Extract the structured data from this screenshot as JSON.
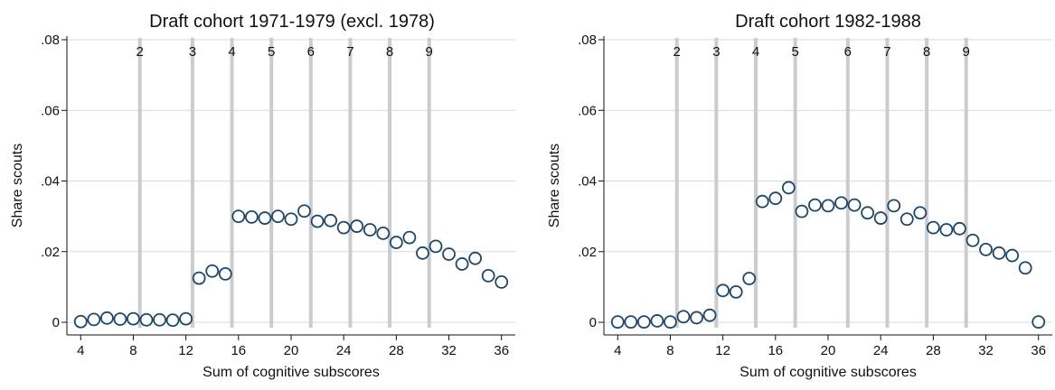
{
  "chart_data": [
    {
      "type": "scatter",
      "title": "Draft cohort 1971-1979 (excl. 1978)",
      "xlabel": "Sum of cognitive subscores",
      "ylabel": "Share scouts",
      "xlim": [
        3.5,
        36.5
      ],
      "ylim": [
        0,
        0.08
      ],
      "xticks": [
        4,
        8,
        12,
        16,
        20,
        24,
        28,
        32,
        36
      ],
      "yticks": [
        0,
        0.02,
        0.04,
        0.06,
        0.08
      ],
      "ytick_labels": [
        "0",
        ".02",
        ".04",
        ".06",
        ".08"
      ],
      "grid": "horizontal",
      "vlines": [
        {
          "x": 8.5,
          "label": "2"
        },
        {
          "x": 12.5,
          "label": "3"
        },
        {
          "x": 15.5,
          "label": "4"
        },
        {
          "x": 18.5,
          "label": "5"
        },
        {
          "x": 21.5,
          "label": "6"
        },
        {
          "x": 24.5,
          "label": "7"
        },
        {
          "x": 27.5,
          "label": "8"
        },
        {
          "x": 30.5,
          "label": "9"
        }
      ],
      "points": [
        [
          4,
          0.0002
        ],
        [
          5,
          0.0008
        ],
        [
          6,
          0.0012
        ],
        [
          7,
          0.0009
        ],
        [
          8,
          0.001
        ],
        [
          9,
          0.0007
        ],
        [
          10,
          0.0007
        ],
        [
          11,
          0.0006
        ],
        [
          12,
          0.001
        ],
        [
          13,
          0.0125
        ],
        [
          14,
          0.0145
        ],
        [
          15,
          0.0137
        ],
        [
          16,
          0.03
        ],
        [
          17,
          0.0298
        ],
        [
          18,
          0.0295
        ],
        [
          19,
          0.03
        ],
        [
          20,
          0.0292
        ],
        [
          21,
          0.0315
        ],
        [
          22,
          0.0286
        ],
        [
          23,
          0.0288
        ],
        [
          24,
          0.0268
        ],
        [
          25,
          0.0272
        ],
        [
          26,
          0.0262
        ],
        [
          27,
          0.0252
        ],
        [
          28,
          0.0226
        ],
        [
          29,
          0.024
        ],
        [
          30,
          0.0196
        ],
        [
          31,
          0.0215
        ],
        [
          32,
          0.0193
        ],
        [
          33,
          0.0165
        ],
        [
          34,
          0.0181
        ],
        [
          35,
          0.0132
        ],
        [
          36,
          0.0114
        ]
      ]
    },
    {
      "type": "scatter",
      "title": "Draft cohort 1982-1988",
      "xlabel": "Sum of cognitive subscores",
      "ylabel": "Share scouts",
      "xlim": [
        3.5,
        36.5
      ],
      "ylim": [
        0,
        0.08
      ],
      "xticks": [
        4,
        8,
        12,
        16,
        20,
        24,
        28,
        32,
        36
      ],
      "yticks": [
        0,
        0.02,
        0.04,
        0.06,
        0.08
      ],
      "ytick_labels": [
        "0",
        ".02",
        ".04",
        ".06",
        ".08"
      ],
      "grid": "horizontal",
      "vlines": [
        {
          "x": 8.5,
          "label": "2"
        },
        {
          "x": 11.5,
          "label": "3"
        },
        {
          "x": 14.5,
          "label": "4"
        },
        {
          "x": 17.5,
          "label": "5"
        },
        {
          "x": 21.5,
          "label": "6"
        },
        {
          "x": 24.5,
          "label": "7"
        },
        {
          "x": 27.5,
          "label": "8"
        },
        {
          "x": 30.5,
          "label": "9"
        }
      ],
      "points": [
        [
          4,
          0.0001
        ],
        [
          5,
          0.0001
        ],
        [
          6,
          0.0001
        ],
        [
          7,
          0.0004
        ],
        [
          8,
          0.0001
        ],
        [
          9,
          0.0016
        ],
        [
          10,
          0.0013
        ],
        [
          11,
          0.002
        ],
        [
          12,
          0.009
        ],
        [
          13,
          0.0086
        ],
        [
          14,
          0.0124
        ],
        [
          15,
          0.0342
        ],
        [
          16,
          0.0351
        ],
        [
          17,
          0.0381
        ],
        [
          18,
          0.0314
        ],
        [
          19,
          0.0332
        ],
        [
          20,
          0.033
        ],
        [
          21,
          0.0338
        ],
        [
          22,
          0.0332
        ],
        [
          23,
          0.031
        ],
        [
          24,
          0.0295
        ],
        [
          25,
          0.033
        ],
        [
          26,
          0.0292
        ],
        [
          27,
          0.031
        ],
        [
          28,
          0.0268
        ],
        [
          29,
          0.0262
        ],
        [
          30,
          0.0265
        ],
        [
          31,
          0.0232
        ],
        [
          32,
          0.0206
        ],
        [
          33,
          0.0196
        ],
        [
          34,
          0.0189
        ],
        [
          35,
          0.0154
        ],
        [
          36,
          0.0001
        ]
      ]
    }
  ],
  "colors": {
    "marker_stroke": "#1a476f",
    "vline": "#cccccc",
    "grid": "#d9d9d9",
    "axis": "#111111"
  }
}
